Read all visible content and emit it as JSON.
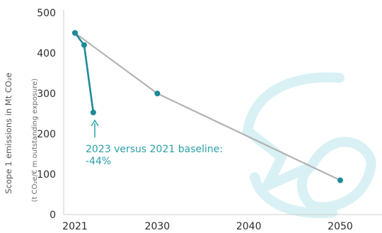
{
  "chart_data": {
    "type": "line",
    "ylabel": "Scope 1 emissions in Mt CO₂e",
    "ylabel_secondary": "(t CO₂e/€ m outstanding exposure)",
    "xlim": [
      2021,
      2054
    ],
    "ylim": [
      0,
      500
    ],
    "x_ticks": [
      2021,
      2030,
      2040,
      2050
    ],
    "y_ticks": [
      0,
      100,
      200,
      300,
      400,
      500
    ],
    "grid": false,
    "series": [
      {
        "color": "#1e8a9a",
        "points": [
          {
            "x": 2021,
            "y": 450
          },
          {
            "x": 2022,
            "y": 420
          },
          {
            "x": 2023,
            "y": 253
          }
        ]
      },
      {
        "color": "#b3b3b3",
        "points": [
          {
            "x": 2021,
            "y": 450
          },
          {
            "x": 2030,
            "y": 300
          },
          {
            "x": 2050,
            "y": 85
          }
        ]
      }
    ],
    "annotation": {
      "line1": "2023 versus 2021 baseline:",
      "line2": "-44%",
      "color": "#2ba0a8"
    },
    "watermark_color": "#d9f1f4"
  }
}
